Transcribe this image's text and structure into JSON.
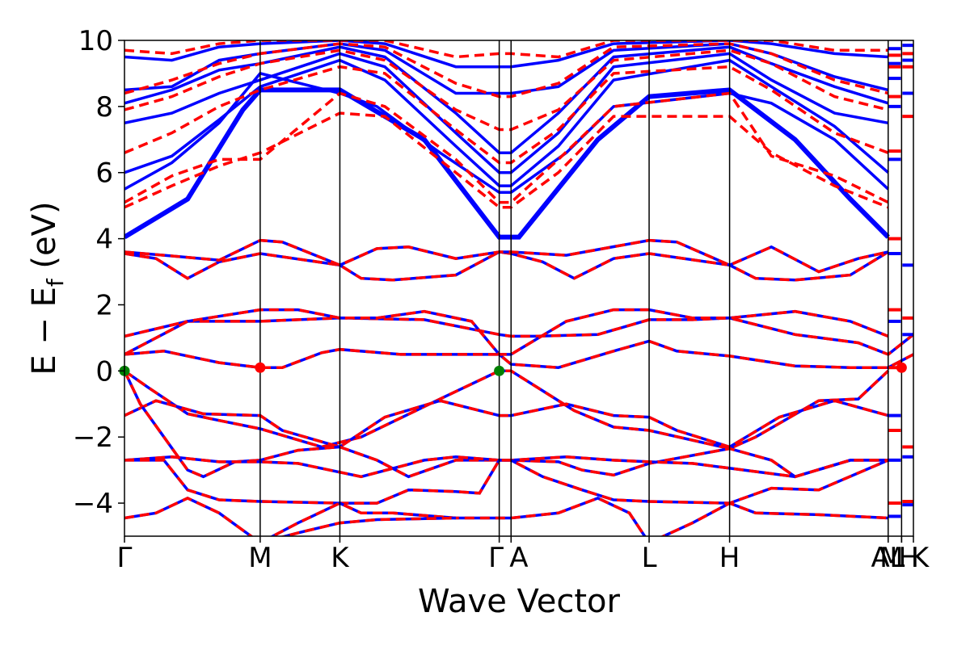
{
  "chart_data": {
    "type": "line",
    "title": "",
    "xlabel": "Wave Vector",
    "ylabel": "E − E_f (eV)",
    "ylabel_parts": {
      "main": "E − E",
      "sub": "f",
      "unit": " (eV)"
    },
    "ylim": [
      -5,
      10
    ],
    "yticks": [
      -4,
      -2,
      0,
      2,
      4,
      6,
      8,
      10
    ],
    "ytick_labels": [
      "−4",
      "−2",
      "0",
      "2",
      "4",
      "6",
      "8",
      "10"
    ],
    "xlim": [
      0,
      1.0
    ],
    "kpoints": [
      {
        "label": "Γ",
        "x": 0.0
      },
      {
        "label": "M",
        "x": 0.172
      },
      {
        "label": "K",
        "x": 0.273
      },
      {
        "label": "Γ",
        "x": 0.475
      },
      {
        "label": "A",
        "x": 0.49
      },
      {
        "label": "L",
        "x": 0.665
      },
      {
        "label": "H",
        "x": 0.767
      },
      {
        "label": "A",
        "x": 0.968
      },
      {
        "label": "M",
        "x": 0.968
      },
      {
        "label": "L",
        "x": 0.985
      },
      {
        "label": "H",
        "x": 0.985
      },
      {
        "label": "K",
        "x": 1.0
      }
    ],
    "kpath_text": "ΓMKΓALHA|ML|HK",
    "series": [
      {
        "name": "band (blue)",
        "color": "#0000ff",
        "style": "solid"
      },
      {
        "name": "band (red)",
        "color": "#ff0000",
        "style": "dashed"
      }
    ],
    "special_points": [
      {
        "x": 0.0,
        "y": 0.0,
        "color": "#008000"
      },
      {
        "x": 0.475,
        "y": 0.0,
        "color": "#008000"
      },
      {
        "x": 0.172,
        "y": 0.1,
        "color": "#ff0000"
      },
      {
        "x": 0.985,
        "y": 0.1,
        "color": "#ff0000"
      }
    ],
    "valence_bands": [
      {
        "y": [
          0.5,
          0.6,
          0.25,
          0.1,
          0.1,
          0.55,
          0.65,
          0.5,
          0.5,
          0.2,
          0.1,
          0.6,
          0.9,
          0.6,
          0.45,
          0.15,
          0.1,
          0.1,
          0.5
        ],
        "x": [
          0,
          0.05,
          0.12,
          0.172,
          0.2,
          0.25,
          0.273,
          0.35,
          0.475,
          0.49,
          0.55,
          0.62,
          0.665,
          0.7,
          0.767,
          0.85,
          0.92,
          0.968,
          1.0
        ]
      },
      {
        "y": [
          1.05,
          1.5,
          1.5,
          1.55,
          1.6,
          1.55,
          1.1,
          1.05,
          1.05,
          1.1,
          1.55,
          1.55,
          1.6,
          1.1,
          0.85,
          0.5,
          1.1
        ],
        "x": [
          0,
          0.08,
          0.172,
          0.22,
          0.273,
          0.38,
          0.475,
          0.49,
          0.52,
          0.6,
          0.665,
          0.72,
          0.767,
          0.85,
          0.93,
          0.968,
          1.0
        ]
      },
      {
        "y": [
          0.5,
          1.5,
          1.85,
          1.85,
          1.6,
          1.6,
          1.8,
          1.5,
          0.5,
          0.5,
          1.5,
          1.85,
          1.85,
          1.6,
          1.6,
          1.8,
          1.5,
          1.05
        ],
        "x": [
          0,
          0.08,
          0.172,
          0.22,
          0.273,
          0.32,
          0.38,
          0.44,
          0.475,
          0.49,
          0.56,
          0.62,
          0.665,
          0.72,
          0.767,
          0.85,
          0.92,
          0.968
        ]
      },
      {
        "y": [
          0.0,
          -0.5,
          -1.3,
          -1.5,
          -1.75,
          -2.3,
          -2.0,
          -0.85,
          0.0,
          0.0,
          -0.6,
          -1.2,
          -1.7,
          -1.8,
          -2.35,
          -2.0,
          -0.9,
          -0.85,
          0.0
        ],
        "x": [
          0,
          0.03,
          0.08,
          0.12,
          0.172,
          0.25,
          0.3,
          0.4,
          0.475,
          0.49,
          0.53,
          0.57,
          0.62,
          0.665,
          0.767,
          0.8,
          0.88,
          0.93,
          0.968
        ]
      },
      {
        "y": [
          -1.35,
          -0.9,
          -1.3,
          -1.35,
          -1.8,
          -2.3,
          -1.4,
          -0.9,
          -1.35,
          -1.35,
          -1.0,
          -1.35,
          -1.4,
          -1.8,
          -2.3,
          -1.4,
          -0.9,
          -1.35
        ],
        "x": [
          0,
          0.04,
          0.1,
          0.172,
          0.2,
          0.273,
          0.33,
          0.4,
          0.475,
          0.49,
          0.56,
          0.62,
          0.665,
          0.7,
          0.767,
          0.83,
          0.9,
          0.968
        ]
      },
      {
        "y": [
          0.0,
          -1.0,
          -2.0,
          -3.0,
          -3.2,
          -2.75,
          -2.7,
          -2.4,
          -2.3,
          -2.7,
          -3.2,
          -2.7,
          -2.7,
          -2.7,
          -2.75,
          -3.0,
          -3.15,
          -2.8,
          -2.35,
          -2.7,
          -3.2,
          -2.7,
          -2.7
        ],
        "x": [
          0,
          0.02,
          0.05,
          0.08,
          0.1,
          0.14,
          0.172,
          0.22,
          0.273,
          0.32,
          0.36,
          0.42,
          0.475,
          0.49,
          0.55,
          0.58,
          0.62,
          0.665,
          0.767,
          0.82,
          0.85,
          0.92,
          0.968
        ]
      },
      {
        "y": [
          -2.7,
          -2.6,
          -2.75,
          -2.75,
          -2.8,
          -3.2,
          -2.7,
          -2.6,
          -2.7,
          -2.7,
          -2.6,
          -2.7,
          -2.75,
          -2.8,
          -3.2,
          -2.7,
          -2.7
        ],
        "x": [
          0,
          0.06,
          0.12,
          0.172,
          0.22,
          0.3,
          0.38,
          0.42,
          0.475,
          0.49,
          0.56,
          0.62,
          0.665,
          0.72,
          0.85,
          0.92,
          0.968
        ]
      },
      {
        "y": [
          -2.7,
          -2.7,
          -3.6,
          -3.9,
          -3.95,
          -4.0,
          -4.0,
          -3.6,
          -3.65,
          -3.7,
          -2.7,
          -2.7,
          -3.2,
          -3.6,
          -3.9,
          -3.95,
          -4.0,
          -3.55,
          -3.6,
          -2.7
        ],
        "x": [
          0,
          0.05,
          0.08,
          0.12,
          0.172,
          0.273,
          0.32,
          0.36,
          0.42,
          0.45,
          0.475,
          0.49,
          0.53,
          0.58,
          0.62,
          0.665,
          0.767,
          0.82,
          0.88,
          0.968
        ]
      },
      {
        "y": [
          -4.45,
          -4.3,
          -3.85,
          -4.3,
          -5.2,
          -4.6,
          -4.0,
          -4.3,
          -4.3,
          -4.45,
          -4.45,
          -4.45,
          -4.3,
          -3.85,
          -4.3,
          -5.2,
          -4.6,
          -4.0,
          -4.3,
          -4.35,
          -4.45
        ],
        "x": [
          0,
          0.04,
          0.08,
          0.12,
          0.172,
          0.22,
          0.273,
          0.3,
          0.34,
          0.42,
          0.475,
          0.49,
          0.55,
          0.6,
          0.64,
          0.665,
          0.72,
          0.767,
          0.8,
          0.88,
          0.968
        ]
      },
      {
        "y": [
          -5.2,
          -4.9,
          -4.6,
          -4.5,
          -4.45
        ],
        "x": [
          0.172,
          0.22,
          0.273,
          0.32,
          0.42
        ]
      },
      {
        "y": [
          3.55,
          3.4,
          2.8,
          3.3,
          3.55,
          3.2,
          2.8,
          2.75,
          2.9,
          3.6,
          3.55,
          3.3,
          2.8,
          3.4,
          3.55,
          3.2,
          2.8,
          2.75,
          2.9,
          3.6
        ],
        "x": [
          0,
          0.04,
          0.08,
          0.12,
          0.172,
          0.273,
          0.3,
          0.34,
          0.42,
          0.475,
          0.49,
          0.53,
          0.57,
          0.62,
          0.665,
          0.767,
          0.8,
          0.85,
          0.92,
          0.968
        ]
      },
      {
        "y": [
          3.6,
          3.5,
          3.35,
          3.95,
          3.9,
          3.2,
          3.7,
          3.75,
          3.4,
          3.6,
          3.6,
          3.5,
          3.95,
          3.9,
          3.2,
          3.75,
          3.0,
          3.4,
          3.6
        ],
        "x": [
          0,
          0.05,
          0.12,
          0.172,
          0.2,
          0.273,
          0.32,
          0.36,
          0.42,
          0.475,
          0.49,
          0.56,
          0.665,
          0.7,
          0.767,
          0.82,
          0.88,
          0.93,
          0.968
        ]
      }
    ],
    "conduction_bands_blue": [
      {
        "y": [
          4.05,
          5.2,
          7.9,
          8.5,
          8.5,
          7.0,
          4.05,
          4.05,
          4.05,
          7.0,
          8.3,
          8.5,
          7.0,
          5.2,
          4.05
        ],
        "x": [
          0,
          0.08,
          0.15,
          0.172,
          0.273,
          0.38,
          0.475,
          0.49,
          0.5,
          0.6,
          0.665,
          0.767,
          0.85,
          0.92,
          0.968
        ]
      },
      {
        "y": [
          5.5,
          6.3,
          7.5,
          9.0,
          8.4,
          8.0,
          6.6,
          5.4,
          5.4,
          6.6,
          8.0,
          8.4,
          8.1,
          7.0,
          5.5
        ],
        "x": [
          0,
          0.06,
          0.12,
          0.172,
          0.273,
          0.32,
          0.4,
          0.475,
          0.49,
          0.56,
          0.62,
          0.767,
          0.82,
          0.9,
          0.968
        ]
      },
      {
        "y": [
          6.0,
          6.5,
          7.6,
          8.6,
          9.4,
          8.8,
          6.8,
          5.6,
          5.6,
          6.8,
          8.8,
          9.4,
          8.6,
          7.4,
          6.0
        ],
        "x": [
          0,
          0.06,
          0.12,
          0.172,
          0.273,
          0.33,
          0.42,
          0.475,
          0.49,
          0.55,
          0.62,
          0.767,
          0.82,
          0.9,
          0.968
        ]
      },
      {
        "y": [
          7.5,
          7.8,
          8.4,
          8.8,
          9.6,
          9.2,
          7.2,
          6.0,
          6.0,
          7.2,
          9.2,
          9.6,
          8.8,
          7.8,
          7.5
        ],
        "x": [
          0,
          0.06,
          0.12,
          0.172,
          0.273,
          0.33,
          0.42,
          0.475,
          0.49,
          0.55,
          0.62,
          0.767,
          0.82,
          0.9,
          0.968
        ]
      },
      {
        "y": [
          8.1,
          8.5,
          9.1,
          9.3,
          9.8,
          9.5,
          7.8,
          6.6,
          6.6,
          7.8,
          9.5,
          9.8,
          9.3,
          8.6,
          8.1
        ],
        "x": [
          0,
          0.06,
          0.12,
          0.172,
          0.273,
          0.33,
          0.42,
          0.475,
          0.49,
          0.55,
          0.62,
          0.767,
          0.82,
          0.9,
          0.968
        ]
      },
      {
        "y": [
          8.5,
          8.6,
          9.4,
          9.6,
          9.9,
          9.7,
          8.4,
          8.4,
          8.4,
          8.6,
          9.7,
          9.9,
          9.6,
          8.9,
          8.5
        ],
        "x": [
          0,
          0.06,
          0.12,
          0.172,
          0.273,
          0.33,
          0.42,
          0.475,
          0.49,
          0.55,
          0.62,
          0.767,
          0.82,
          0.9,
          0.968
        ]
      },
      {
        "y": [
          9.5,
          9.4,
          9.8,
          9.9,
          10.0,
          9.9,
          9.2,
          9.2,
          9.2,
          9.4,
          9.9,
          10.0,
          9.9,
          9.6,
          9.5
        ],
        "x": [
          0,
          0.06,
          0.12,
          0.172,
          0.273,
          0.33,
          0.42,
          0.475,
          0.49,
          0.55,
          0.62,
          0.767,
          0.82,
          0.9,
          0.968
        ]
      }
    ],
    "conduction_bands_red": [
      {
        "y": [
          4.95,
          5.6,
          6.2,
          6.6,
          7.8,
          7.7,
          6.0,
          4.95,
          4.95,
          6.0,
          7.7,
          7.7,
          6.6,
          5.6,
          4.95
        ],
        "x": [
          0,
          0.06,
          0.12,
          0.172,
          0.273,
          0.33,
          0.42,
          0.475,
          0.49,
          0.55,
          0.62,
          0.767,
          0.82,
          0.9,
          0.968
        ]
      },
      {
        "y": [
          5.1,
          5.9,
          6.4,
          6.4,
          8.4,
          8.0,
          6.4,
          5.1,
          5.1,
          6.4,
          8.0,
          8.4,
          6.5,
          5.9,
          5.1
        ],
        "x": [
          0,
          0.06,
          0.12,
          0.172,
          0.273,
          0.33,
          0.42,
          0.475,
          0.49,
          0.55,
          0.62,
          0.767,
          0.82,
          0.9,
          0.968
        ]
      },
      {
        "y": [
          6.6,
          7.2,
          8.0,
          8.5,
          9.2,
          9.0,
          7.3,
          6.3,
          6.3,
          7.3,
          9.0,
          9.2,
          8.5,
          7.2,
          6.6
        ],
        "x": [
          0,
          0.06,
          0.12,
          0.172,
          0.273,
          0.33,
          0.42,
          0.475,
          0.49,
          0.55,
          0.62,
          0.767,
          0.82,
          0.9,
          0.968
        ]
      },
      {
        "y": [
          7.9,
          8.3,
          8.9,
          9.3,
          9.7,
          9.4,
          7.9,
          7.3,
          7.3,
          7.9,
          9.4,
          9.7,
          9.3,
          8.3,
          7.9
        ],
        "x": [
          0,
          0.06,
          0.12,
          0.172,
          0.273,
          0.33,
          0.42,
          0.475,
          0.49,
          0.55,
          0.62,
          0.767,
          0.82,
          0.9,
          0.968
        ]
      },
      {
        "y": [
          8.4,
          8.8,
          9.3,
          9.6,
          9.9,
          9.8,
          8.7,
          8.3,
          8.3,
          8.7,
          9.8,
          9.9,
          9.6,
          8.8,
          8.4
        ],
        "x": [
          0,
          0.06,
          0.12,
          0.172,
          0.273,
          0.33,
          0.42,
          0.475,
          0.49,
          0.55,
          0.62,
          0.767,
          0.82,
          0.9,
          0.968
        ]
      },
      {
        "y": [
          9.7,
          9.6,
          9.9,
          10.0,
          10.0,
          10.0,
          9.5,
          9.6,
          9.6,
          9.5,
          10.0,
          10.0,
          10.0,
          9.7,
          9.7
        ],
        "x": [
          0,
          0.06,
          0.12,
          0.172,
          0.273,
          0.33,
          0.42,
          0.475,
          0.49,
          0.55,
          0.62,
          0.767,
          0.82,
          0.9,
          0.968
        ]
      }
    ],
    "segment_ticks": [
      {
        "x0": 0.968,
        "x1": 0.984,
        "values": [
          9.75,
          9.55,
          9.3,
          9.2,
          8.85,
          8.3,
          8.0,
          6.65,
          6.4,
          4.0,
          3.55,
          1.85,
          1.5,
          0.1,
          -1.35,
          -1.8,
          -2.7,
          -4.0,
          -4.4
        ]
      },
      {
        "x0": 0.986,
        "x1": 1.0,
        "values": [
          9.85,
          9.6,
          9.4,
          9.2,
          8.4,
          7.7,
          3.2,
          1.6,
          1.1,
          -2.3,
          -2.6,
          -3.95,
          -4.05
        ]
      }
    ]
  }
}
